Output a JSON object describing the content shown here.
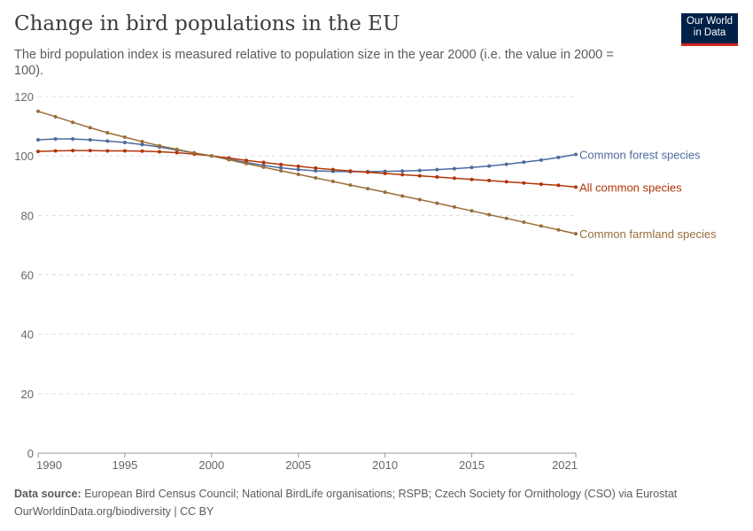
{
  "header": {
    "title": "Change in bird populations in the EU",
    "subtitle": "The bird population index is measured relative to population size in the year 2000 (i.e. the value in 2000 = 100).",
    "logo": "Our World in Data"
  },
  "footer": {
    "source_label": "Data source:",
    "source": "European Bird Census Council; National BirdLife organisations; RSPB; Czech Society for Ornithology (CSO) via Eurostat",
    "url_license": "OurWorldinData.org/biodiversity | CC BY"
  },
  "chart_data": {
    "type": "line",
    "title": "Change in bird populations in the EU",
    "xlabel": "",
    "ylabel": "",
    "xlim": [
      1990,
      2021
    ],
    "ylim": [
      0,
      120
    ],
    "grid": "horizontal dashed",
    "legend": "inline-right",
    "x_ticks": [
      1990,
      1995,
      2000,
      2005,
      2010,
      2015,
      2021
    ],
    "y_ticks": [
      0,
      20,
      40,
      60,
      80,
      100,
      120
    ],
    "x": [
      1990,
      1991,
      1992,
      1993,
      1994,
      1995,
      1996,
      1997,
      1998,
      1999,
      2000,
      2001,
      2002,
      2003,
      2004,
      2005,
      2006,
      2007,
      2008,
      2009,
      2010,
      2011,
      2012,
      2013,
      2014,
      2015,
      2016,
      2017,
      2018,
      2019,
      2020,
      2021
    ],
    "series": [
      {
        "name": "Common forest species",
        "color": "#4c6a9c",
        "values": [
          105.4,
          105.7,
          105.7,
          105.4,
          105.0,
          104.5,
          103.8,
          103.0,
          102.0,
          101.0,
          100,
          98.9,
          97.8,
          96.8,
          96.0,
          95.4,
          95.0,
          94.8,
          94.7,
          94.7,
          94.8,
          94.9,
          95.1,
          95.4,
          95.7,
          96.1,
          96.6,
          97.2,
          97.9,
          98.6,
          99.5,
          100.5
        ]
      },
      {
        "name": "All common species",
        "color": "#b13507",
        "values": [
          101.5,
          101.7,
          101.8,
          101.8,
          101.7,
          101.7,
          101.6,
          101.4,
          101.1,
          100.6,
          100,
          99.3,
          98.5,
          97.8,
          97.1,
          96.5,
          95.9,
          95.4,
          94.9,
          94.5,
          94.1,
          93.7,
          93.3,
          92.9,
          92.5,
          92.1,
          91.7,
          91.3,
          90.9,
          90.5,
          90.1,
          89.5
        ]
      },
      {
        "name": "Common farmland species",
        "color": "#996d39",
        "values": [
          115,
          113.2,
          111.3,
          109.5,
          107.8,
          106.3,
          104.8,
          103.4,
          102.2,
          101,
          100,
          98.7,
          97.4,
          96.2,
          95.0,
          93.8,
          92.6,
          91.4,
          90.2,
          89.0,
          87.8,
          86.5,
          85.3,
          84.1,
          82.8,
          81.5,
          80.2,
          79.0,
          77.7,
          76.4,
          75.1,
          73.8
        ]
      }
    ]
  }
}
